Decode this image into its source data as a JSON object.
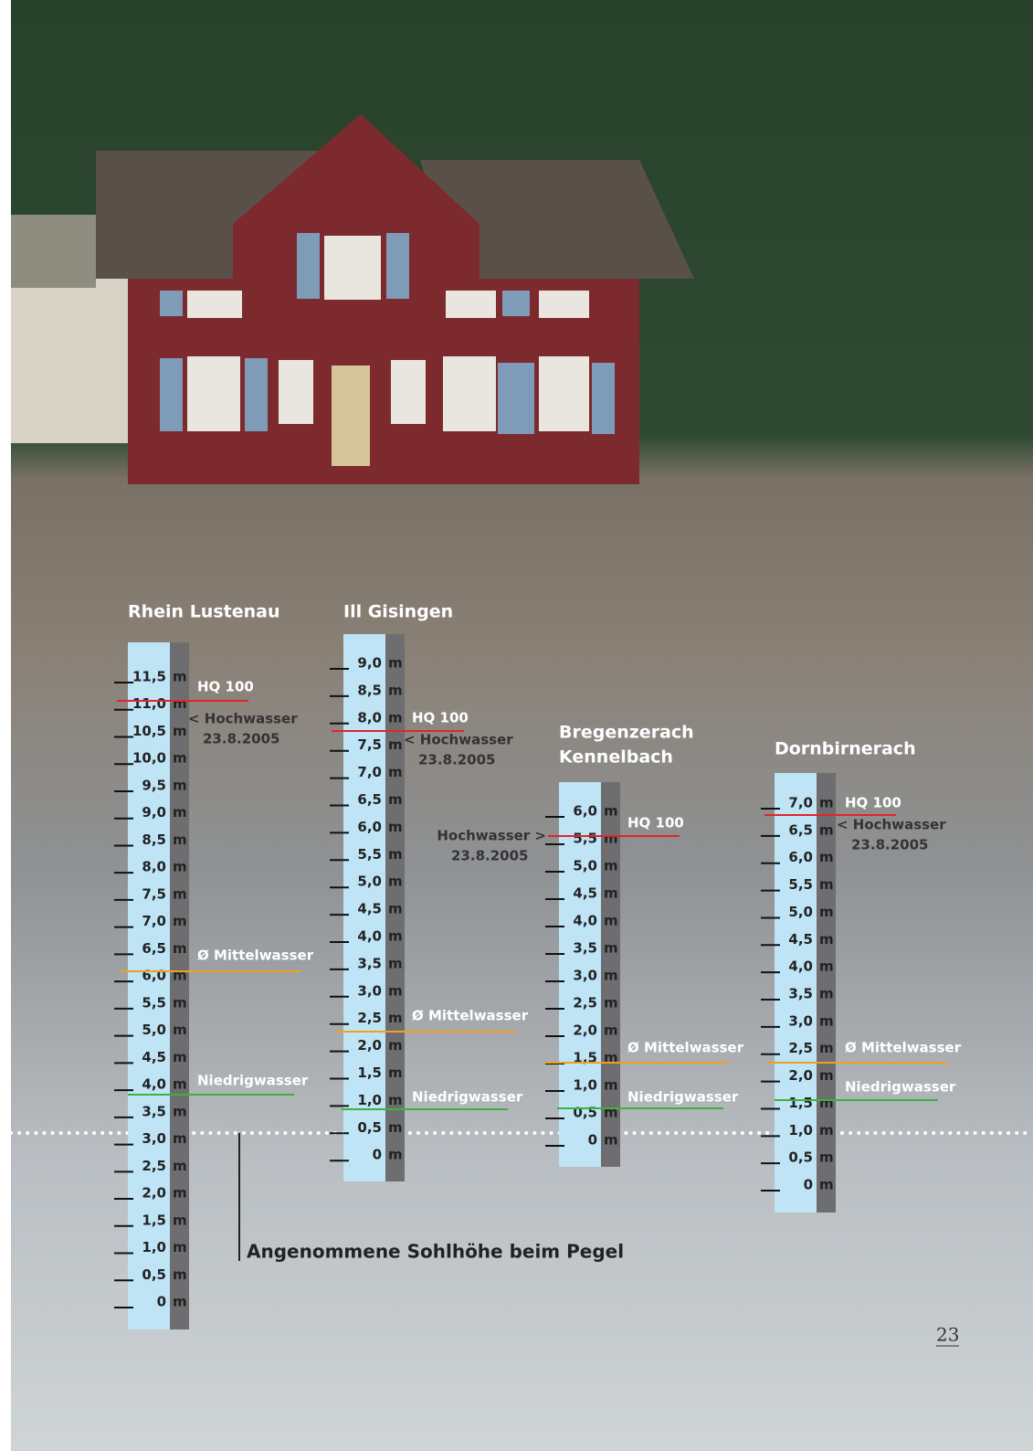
{
  "gauges": [
    {
      "title": [
        "Rhein Lustenau"
      ],
      "unit": "m",
      "ticks": [
        "11,5",
        "11,0",
        "10,5",
        "10,0",
        "9,5",
        "9,0",
        "8,5",
        "8,0",
        "7,5",
        "7,0",
        "6,5",
        "6,0",
        "5,5",
        "5,0",
        "4,5",
        "4,0",
        "3,5",
        "3,0",
        "2,5",
        "2,0",
        "1,5",
        "1,0",
        "0,5",
        "0"
      ],
      "hq": "HQ 100",
      "flood": [
        "< Hochwasser",
        "23.8.2005"
      ],
      "mean": "Ø Mittelwasser",
      "low": "Niedrigwasser"
    },
    {
      "title": [
        "Ill Gisingen"
      ],
      "unit": "m",
      "ticks": [
        "9,0",
        "8,5",
        "8,0",
        "7,5",
        "7,0",
        "6,5",
        "6,0",
        "5,5",
        "5,0",
        "4,5",
        "4,0",
        "3,5",
        "3,0",
        "2,5",
        "2,0",
        "1,5",
        "1,0",
        "0,5",
        "0"
      ],
      "hq": "HQ 100",
      "flood": [
        "< Hochwasser",
        "23.8.2005"
      ],
      "mean": "Ø Mittelwasser",
      "low": "Niedrigwasser"
    },
    {
      "title": [
        "Bregenzerach",
        "Kennelbach"
      ],
      "unit": "m",
      "ticks": [
        "6,0",
        "5,5",
        "5,0",
        "4,5",
        "4,0",
        "3,5",
        "3,0",
        "2,5",
        "2,0",
        "1,5",
        "1,0",
        "0,5",
        "0"
      ],
      "hq": "HQ 100",
      "flood": [
        "Hochwasser >",
        "23.8.2005"
      ],
      "mean": "Ø Mittelwasser",
      "low": "Niedrigwasser"
    },
    {
      "title": [
        "Dornbirnerach"
      ],
      "unit": "m",
      "ticks": [
        "7,0",
        "6,5",
        "6,0",
        "5,5",
        "5,0",
        "4,5",
        "4,0",
        "3,5",
        "3,0",
        "2,5",
        "2,0",
        "1,5",
        "1,0",
        "0,5",
        "0"
      ],
      "hq": "HQ 100",
      "flood": [
        "< Hochwasser",
        "23.8.2005"
      ],
      "mean": "Ø Mittelwasser",
      "low": "Niedrigwasser"
    }
  ],
  "footnote": "Angenommene Sohlhöhe beim Pegel",
  "page_number": "23"
}
